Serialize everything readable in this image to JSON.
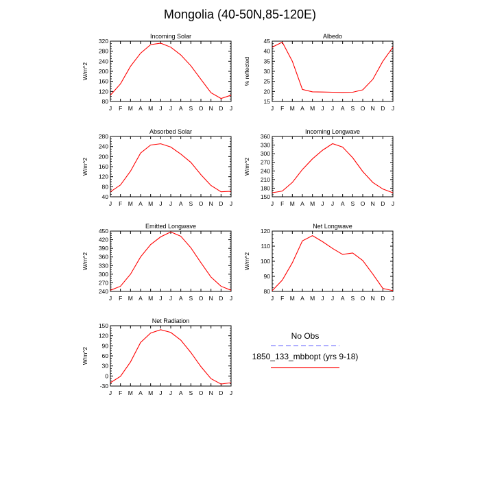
{
  "figure": {
    "title": "Mongolia (40-50N,85-120E)",
    "months": [
      "J",
      "F",
      "M",
      "A",
      "M",
      "J",
      "J",
      "A",
      "S",
      "O",
      "N",
      "D",
      "J"
    ]
  },
  "legend": {
    "obs_label": "No Obs",
    "obs_color": "#7f7fff",
    "model_label": "1850_133_mbbopt (yrs 9-18)",
    "model_color": "#ff0000"
  },
  "chart_data": [
    {
      "type": "line",
      "title": "Incoming Solar",
      "ylabel": "W/m^2",
      "ylim": [
        80,
        320
      ],
      "yticks": [
        80,
        120,
        160,
        200,
        240,
        280,
        320
      ],
      "series": [
        {
          "name": "1850_133_mbbopt (yrs 9-18)",
          "values": [
            105,
            150,
            220,
            272,
            306,
            312,
            296,
            265,
            222,
            168,
            115,
            92,
            105
          ]
        }
      ]
    },
    {
      "type": "line",
      "title": "Albedo",
      "ylabel": "% reflected",
      "ylim": [
        15,
        45
      ],
      "yticks": [
        15,
        20,
        25,
        30,
        35,
        40,
        45
      ],
      "series": [
        {
          "name": "1850_133_mbbopt (yrs 9-18)",
          "values": [
            42,
            44.5,
            35,
            21,
            19.8,
            19.7,
            19.6,
            19.5,
            19.6,
            20.8,
            26,
            35,
            42
          ]
        }
      ]
    },
    {
      "type": "line",
      "title": "Absorbed Solar",
      "ylabel": "W/m^2",
      "ylim": [
        40,
        280
      ],
      "yticks": [
        40,
        80,
        120,
        160,
        200,
        240,
        280
      ],
      "series": [
        {
          "name": "1850_133_mbbopt (yrs 9-18)",
          "values": [
            60,
            87,
            142,
            214,
            246,
            251,
            238,
            210,
            177,
            128,
            85,
            60,
            62
          ]
        }
      ]
    },
    {
      "type": "line",
      "title": "Incoming Longwave",
      "ylabel": "W/m^2",
      "ylim": [
        150,
        360
      ],
      "yticks": [
        150,
        180,
        210,
        240,
        270,
        300,
        330,
        360
      ],
      "series": [
        {
          "name": "1850_133_mbbopt (yrs 9-18)",
          "values": [
            164,
            170,
            200,
            245,
            282,
            312,
            335,
            323,
            286,
            238,
            200,
            177,
            164
          ]
        }
      ]
    },
    {
      "type": "line",
      "title": "Emitted Longwave",
      "ylabel": "W/m^2",
      "ylim": [
        240,
        450
      ],
      "yticks": [
        240,
        270,
        300,
        330,
        360,
        390,
        420,
        450
      ],
      "series": [
        {
          "name": "1850_133_mbbopt (yrs 9-18)",
          "values": [
            244,
            258,
            300,
            360,
            403,
            430,
            447,
            432,
            392,
            340,
            290,
            258,
            244
          ]
        }
      ]
    },
    {
      "type": "line",
      "title": "Net Longwave",
      "ylabel": "W/m^2",
      "ylim": [
        80,
        120
      ],
      "yticks": [
        80,
        90,
        100,
        110,
        120
      ],
      "series": [
        {
          "name": "1850_133_mbbopt (yrs 9-18)",
          "values": [
            80.5,
            87.5,
            99,
            113.5,
            117,
            113,
            108.5,
            104.5,
            105.5,
            100.5,
            91.5,
            82,
            80.5
          ]
        }
      ]
    },
    {
      "type": "line",
      "title": "Net Radiation",
      "ylabel": "W/m^2",
      "ylim": [
        -30,
        150
      ],
      "yticks": [
        -30,
        0,
        30,
        60,
        90,
        120,
        150
      ],
      "series": [
        {
          "name": "1850_133_mbbopt (yrs 9-18)",
          "values": [
            -20,
            -1,
            42,
            100,
            128,
            138,
            130,
            107,
            70,
            28,
            -8,
            -24,
            -20
          ]
        }
      ]
    }
  ]
}
